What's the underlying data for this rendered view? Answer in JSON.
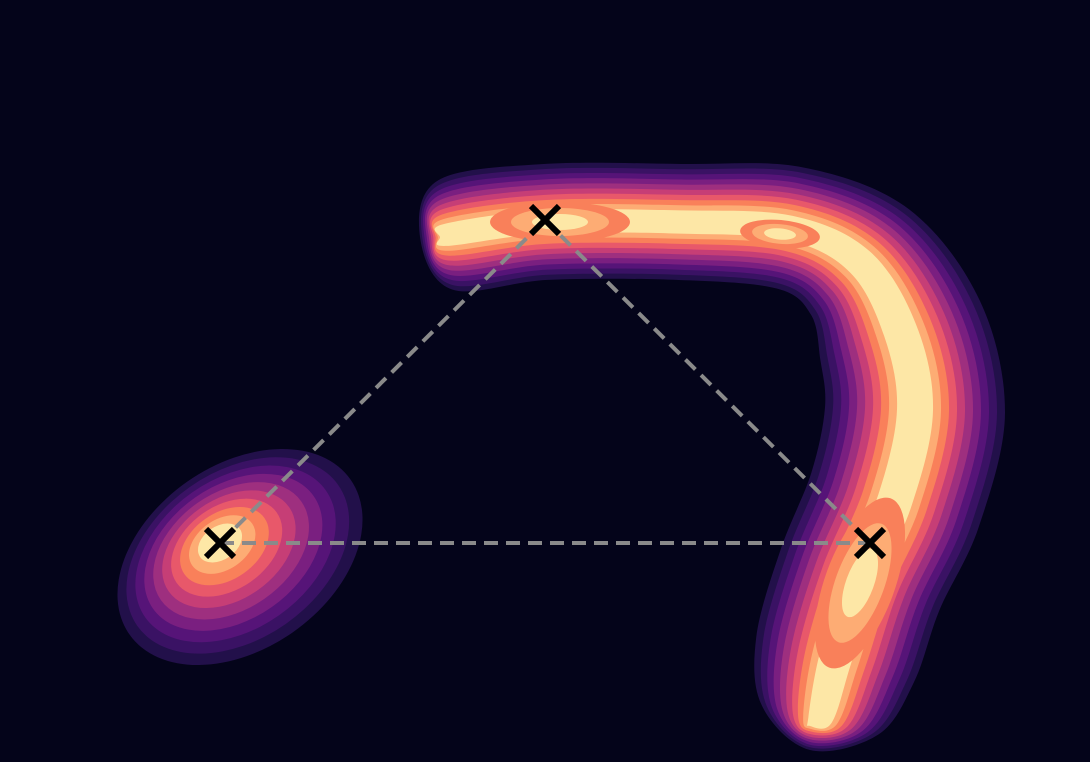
{
  "chart_data": {
    "type": "contour",
    "title": "",
    "xlabel": "",
    "ylabel": "",
    "grid": false,
    "legend": "none",
    "background_color": "#04041a",
    "colormap": [
      "#22104a",
      "#3a1264",
      "#561478",
      "#7a1f80",
      "#9e2f7f",
      "#c63e76",
      "#e8586a",
      "#f9805a",
      "#fdac74",
      "#fde7a6"
    ],
    "modes": [
      {
        "name": "",
        "x": 0.0,
        "y": 0.0
      },
      {
        "name": "",
        "x": 1.0,
        "y": 1.0
      },
      {
        "name": "",
        "x": 2.0,
        "y": 0.0
      }
    ],
    "marker": "x",
    "marker_color": "#000000",
    "connector_style": "dashed",
    "connector_color": "#8a8a8a",
    "connections": [
      [
        0,
        1
      ],
      [
        1,
        2
      ],
      [
        0,
        2
      ]
    ]
  }
}
